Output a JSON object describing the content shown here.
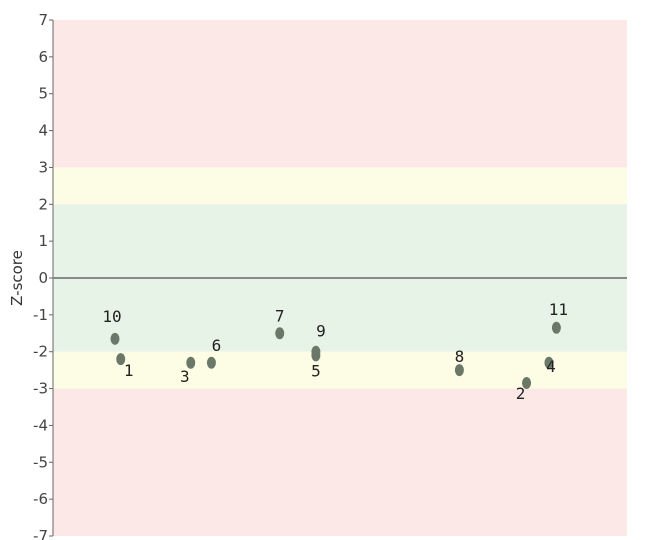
{
  "chart_data": {
    "type": "scatter",
    "ylabel": "Z-score",
    "ylim": [
      -7,
      7
    ],
    "yticks": [
      7,
      6,
      5,
      4,
      3,
      2,
      1,
      0,
      -1,
      -2,
      -3,
      -4,
      -5,
      -6,
      -7
    ],
    "xlim": [
      0,
      100
    ],
    "zero_line": true,
    "bands": [
      {
        "from": 3,
        "to": 7,
        "color": "#fde8e8"
      },
      {
        "from": 2,
        "to": 3,
        "color": "#fdfde6"
      },
      {
        "from": -2,
        "to": 2,
        "color": "#e8f3e8"
      },
      {
        "from": -3,
        "to": -2,
        "color": "#fdfde6"
      },
      {
        "from": -7,
        "to": -3,
        "color": "#fde8e8"
      }
    ],
    "points": [
      {
        "label": "1",
        "x": 11.8,
        "y": -2.2
      },
      {
        "label": "2",
        "x": 82.5,
        "y": -2.85
      },
      {
        "label": "3",
        "x": 24.0,
        "y": -2.3
      },
      {
        "label": "4",
        "x": 86.4,
        "y": -2.3
      },
      {
        "label": "5",
        "x": 45.8,
        "y": -2.1
      },
      {
        "label": "6",
        "x": 27.6,
        "y": -2.3
      },
      {
        "label": "7",
        "x": 39.5,
        "y": -1.5
      },
      {
        "label": "8",
        "x": 70.8,
        "y": -2.5
      },
      {
        "label": "9",
        "x": 45.8,
        "y": -2.0
      },
      {
        "label": "10",
        "x": 10.8,
        "y": -1.65
      },
      {
        "label": "11",
        "x": 87.7,
        "y": -1.35
      }
    ],
    "colors": {
      "point": "#6b7868",
      "zero_line": "#888888",
      "axis": "#666666"
    }
  }
}
